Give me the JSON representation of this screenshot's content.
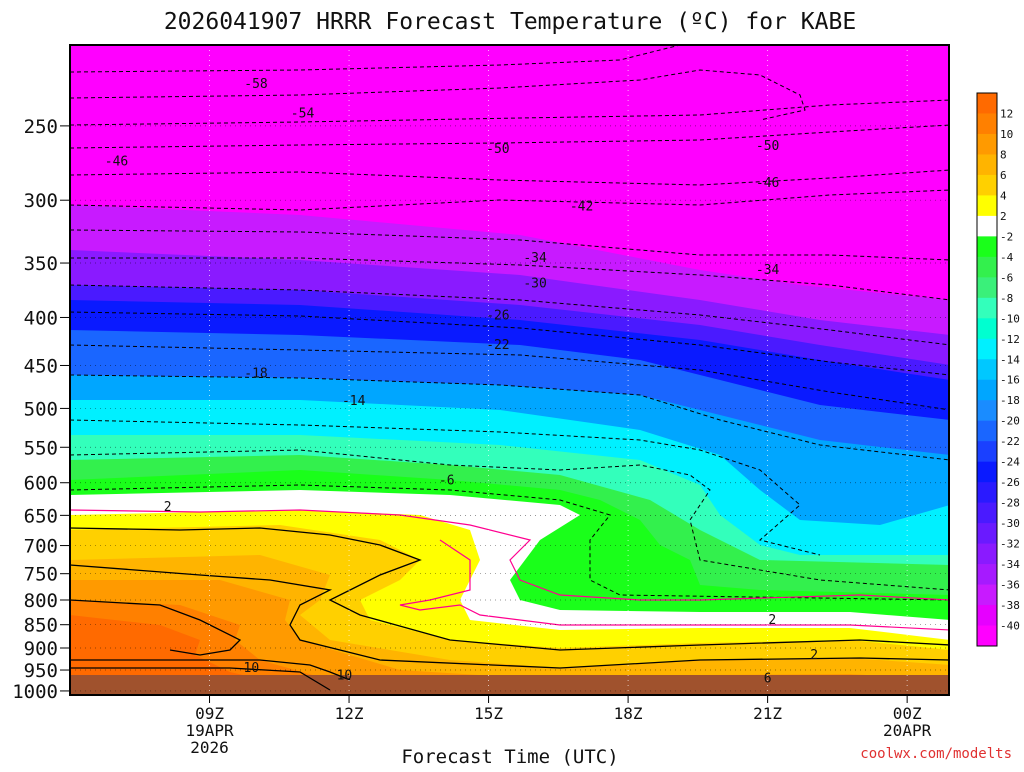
{
  "chart_data": {
    "type": "heatmap",
    "title": "2026041907 HRRR Forecast Temperature (ºC) for KABE",
    "xlabel": "Forecast Time (UTC)",
    "ylabel": "",
    "x_range_hours_utc": [
      6.0,
      24.9
    ],
    "y_range_hpa": [
      1010,
      205
    ],
    "y_scale": "log-pressure",
    "y_ticks": [
      "250",
      "300",
      "350",
      "400",
      "450",
      "500",
      "550",
      "600",
      "650",
      "700",
      "750",
      "800",
      "850",
      "900",
      "950",
      "1000"
    ],
    "x_ticks": [
      {
        "line1": "09Z",
        "line2": "19APR",
        "line3": "2026",
        "hour": 9
      },
      {
        "line1": "12Z",
        "line2": "",
        "line3": "",
        "hour": 12
      },
      {
        "line1": "15Z",
        "line2": "",
        "line3": "",
        "hour": 15
      },
      {
        "line1": "18Z",
        "line2": "",
        "line3": "",
        "hour": 18
      },
      {
        "line1": "21Z",
        "line2": "",
        "line3": "",
        "hour": 21
      },
      {
        "line1": "00Z",
        "line2": "20APR",
        "line3": "",
        "hour": 24
      }
    ],
    "grid": true,
    "colorbar": {
      "placement": "right",
      "bins": [
        {
          "label": "12",
          "color": "#ff6a00"
        },
        {
          "label": "10",
          "color": "#ff8000"
        },
        {
          "label": "8",
          "color": "#ff9a00"
        },
        {
          "label": "6",
          "color": "#ffb400"
        },
        {
          "label": "4",
          "color": "#ffd000"
        },
        {
          "label": "2",
          "color": "#ffff00"
        },
        {
          "label": "-2",
          "color": "#ffffff"
        },
        {
          "label": "-4",
          "color": "#1aff1a"
        },
        {
          "label": "-6",
          "color": "#33f04d"
        },
        {
          "label": "-8",
          "color": "#3af07a"
        },
        {
          "label": "-10",
          "color": "#33ffbb"
        },
        {
          "label": "-12",
          "color": "#00ffd0"
        },
        {
          "label": "-14",
          "color": "#00f0ff"
        },
        {
          "label": "-16",
          "color": "#00c8ff"
        },
        {
          "label": "-18",
          "color": "#00a6ff"
        },
        {
          "label": "-20",
          "color": "#1a8cff"
        },
        {
          "label": "-22",
          "color": "#1a66ff"
        },
        {
          "label": "-24",
          "color": "#1a40ff"
        },
        {
          "label": "-26",
          "color": "#0a1aff"
        },
        {
          "label": "-28",
          "color": "#2a1aff"
        },
        {
          "label": "-30",
          "color": "#4a1aff"
        },
        {
          "label": "-32",
          "color": "#6a1aff"
        },
        {
          "label": "-34",
          "color": "#8a1aff"
        },
        {
          "label": "-36",
          "color": "#a61aff"
        },
        {
          "label": "-38",
          "color": "#c81aff"
        },
        {
          "label": "-40",
          "color": "#e600ff"
        },
        {
          "label": "",
          "color": "#ff00ff"
        }
      ]
    },
    "ground_color": "#a0522d",
    "contour_labels": [
      {
        "text": "-58",
        "hour": 10.0,
        "hpa": 225
      },
      {
        "text": "-54",
        "hour": 11.0,
        "hpa": 242
      },
      {
        "text": "-50",
        "hour": 15.2,
        "hpa": 264
      },
      {
        "text": "-50",
        "hour": 21.0,
        "hpa": 262
      },
      {
        "text": "-46",
        "hour": 7.0,
        "hpa": 272
      },
      {
        "text": "-46",
        "hour": 21.0,
        "hpa": 287
      },
      {
        "text": "-42",
        "hour": 17.0,
        "hpa": 304
      },
      {
        "text": "-34",
        "hour": 16.0,
        "hpa": 345
      },
      {
        "text": "-34",
        "hour": 21.0,
        "hpa": 355
      },
      {
        "text": "-30",
        "hour": 16.0,
        "hpa": 367
      },
      {
        "text": "-26",
        "hour": 15.2,
        "hpa": 397
      },
      {
        "text": "-22",
        "hour": 15.2,
        "hpa": 427
      },
      {
        "text": "-18",
        "hour": 10.0,
        "hpa": 458
      },
      {
        "text": "-14",
        "hour": 12.1,
        "hpa": 490
      },
      {
        "text": "-6",
        "hour": 14.1,
        "hpa": 595
      },
      {
        "text": "2",
        "hour": 8.1,
        "hpa": 635
      },
      {
        "text": "2",
        "hour": 21.1,
        "hpa": 838
      },
      {
        "text": "2",
        "hour": 22.0,
        "hpa": 913
      },
      {
        "text": "6",
        "hour": 21.0,
        "hpa": 968
      },
      {
        "text": "10",
        "hour": 9.9,
        "hpa": 943
      },
      {
        "text": "10",
        "hour": 11.9,
        "hpa": 960
      }
    ]
  },
  "footer": {
    "credit": "coolwx.com/modelts"
  }
}
